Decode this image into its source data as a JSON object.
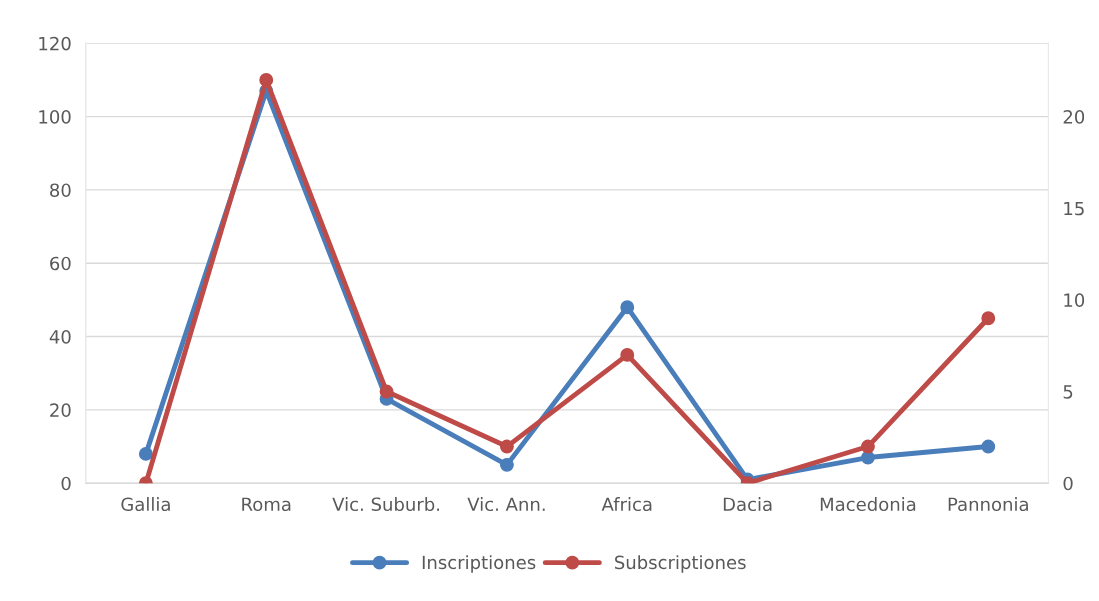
{
  "chart_data": {
    "type": "line",
    "categories": [
      "Gallia",
      "Roma",
      "Vic. Suburb.",
      "Vic. Ann.",
      "Africa",
      "Dacia",
      "Macedonia",
      "Pannonia"
    ],
    "series": [
      {
        "name": "Inscriptiones",
        "color": "#4a7ebb",
        "values": [
          8,
          107,
          23,
          5,
          48,
          1,
          7,
          10
        ]
      },
      {
        "name": "Subscriptiones",
        "color": "#be4b48",
        "axis": "y2",
        "values": [
          0,
          22,
          5,
          2,
          7,
          0,
          2,
          9
        ]
      }
    ],
    "ylim": [
      0,
      120
    ],
    "yticks": [
      0,
      20,
      40,
      60,
      80,
      100,
      120
    ],
    "y2lim": [
      0,
      24
    ],
    "y2ticks": [
      0,
      5,
      10,
      15,
      20
    ],
    "grid": "y",
    "legend": "bottom",
    "marker": "circle",
    "line_style": "solid"
  }
}
